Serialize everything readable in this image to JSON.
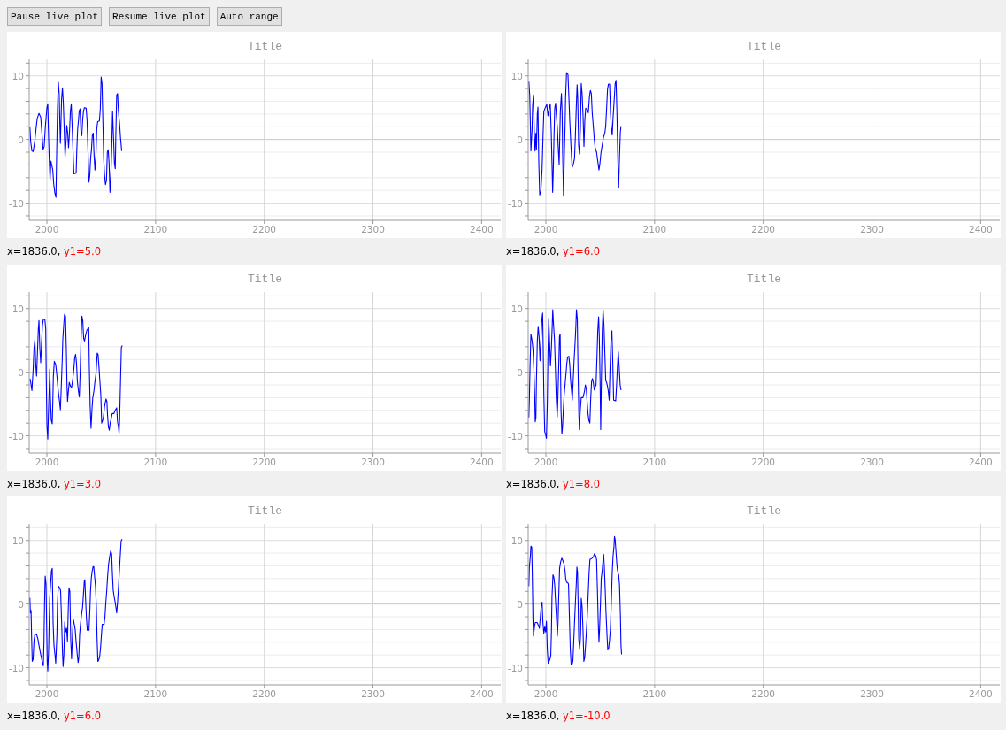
{
  "chart_data": [
    {
      "type": "other",
      "annotations": [
        "Pause live plot",
        "Resume live plot",
        "Auto range"
      ]
    },
    {
      "type": "line",
      "title": "Title",
      "xlim": [
        1983.7,
        2417.6
      ],
      "ylim": [
        -12.7,
        12.6
      ],
      "xticks": [
        2000,
        2100,
        2200,
        2300,
        2400
      ],
      "yticks": [
        {
          "value": -12,
          "label": null
        },
        -10,
        {
          "value": -8,
          "label": null
        },
        {
          "value": -6,
          "label": null
        },
        {
          "value": -4,
          "label": null
        },
        {
          "value": -2,
          "label": null
        },
        0,
        {
          "value": 2,
          "label": null
        },
        {
          "value": 4,
          "label": null
        },
        {
          "value": 6,
          "label": null
        },
        {
          "value": 8,
          "label": null
        },
        10,
        {
          "value": 12,
          "label": null
        }
      ],
      "grid": true,
      "annotations": [
        "x=1836.0,",
        "y1=5.0"
      ],
      "x": [
        1984.3,
        1985.1,
        1986.2,
        1987.3,
        1988.9,
        1990.0,
        1991.1,
        1992.7,
        1994.3,
        1995.4,
        1996.5,
        1997.5,
        1998.6,
        2000.0,
        2000.8,
        2001.3,
        2002.1,
        2002.9,
        2003.7,
        2005.4,
        2006.2,
        2007.3,
        2008.3,
        2008.9,
        2009.7,
        2010.5,
        2011.3,
        2011.8,
        2012.4,
        2012.9,
        2013.5,
        2014.3,
        2015.1,
        2015.9,
        2016.7,
        2017.5,
        2018.3,
        2019.1,
        2019.9,
        2020.8,
        2021.6,
        2022.4,
        2023.2,
        2024.0,
        2024.8,
        2026.9,
        2027.5,
        2028.3,
        2029.1,
        2029.7,
        2030.5,
        2031.3,
        2032.1,
        2032.9,
        2033.7,
        2034.5,
        2036.1,
        2036.9,
        2037.8,
        2038.6,
        2039.4,
        2040.2,
        2041.0,
        2041.8,
        2042.6,
        2043.4,
        2044.2,
        2045.1,
        2045.9,
        2046.7,
        2048.3,
        2049.1,
        2049.9,
        2050.7,
        2051.5,
        2052.3,
        2053.1,
        2053.9,
        2054.8,
        2055.6,
        2056.4,
        2057.2,
        2058.0,
        2058.8,
        2059.6,
        2060.4,
        2061.3,
        2062.1,
        2062.9,
        2063.4,
        2064.2,
        2065.0,
        2065.8,
        2066.9,
        2067.7,
        2068.8
      ],
      "series": [
        {
          "color": "#0000ff",
          "values": [
            2.0,
            -0.4,
            -1.8,
            -1.9,
            -0.2,
            1.7,
            3.3,
            4.1,
            3.5,
            1.0,
            -1.6,
            -1.1,
            2.1,
            5.0,
            5.6,
            1.9,
            -3.0,
            -6.4,
            -3.4,
            -4.8,
            -6.9,
            -8.4,
            -9.1,
            -2.7,
            4.7,
            9.0,
            7.2,
            3.1,
            -0.6,
            2.6,
            6.3,
            8.1,
            5.8,
            1.7,
            -2.7,
            -0.6,
            2.2,
            1.0,
            -1.3,
            1.2,
            4.4,
            5.6,
            2.1,
            -1.8,
            -5.4,
            -5.3,
            -1.6,
            1.7,
            3.1,
            4.5,
            4.8,
            1.3,
            0.6,
            3.1,
            4.5,
            5.0,
            4.9,
            3.1,
            -1.8,
            -6.7,
            -5.7,
            -3.0,
            -1.6,
            0.7,
            1.0,
            -2.5,
            -4.8,
            -2.5,
            1.7,
            2.8,
            2.9,
            4.7,
            9.8,
            8.8,
            2.8,
            -3.2,
            -5.7,
            -7.1,
            -6.4,
            -2.0,
            -1.6,
            -3.7,
            -8.3,
            -5.7,
            -1.6,
            4.4,
            0.3,
            -3.7,
            -4.6,
            0.7,
            7.0,
            7.2,
            4.4,
            2.4,
            0.3,
            -1.8
          ]
        }
      ]
    },
    {
      "type": "line",
      "title": "Title",
      "xlim": [
        1983.7,
        2417.6
      ],
      "ylim": [
        -12.7,
        12.6
      ],
      "xticks": [
        2000,
        2100,
        2200,
        2300,
        2400
      ],
      "yticks": [
        {
          "value": -12,
          "label": null
        },
        -10,
        {
          "value": -8,
          "label": null
        },
        {
          "value": -6,
          "label": null
        },
        {
          "value": -4,
          "label": null
        },
        {
          "value": -2,
          "label": null
        },
        0,
        {
          "value": 2,
          "label": null
        },
        {
          "value": 4,
          "label": null
        },
        {
          "value": 6,
          "label": null
        },
        {
          "value": 8,
          "label": null
        },
        10,
        {
          "value": 12,
          "label": null
        }
      ],
      "grid": true,
      "annotations": [
        "x=1836.0,",
        "y1=6.0"
      ],
      "x": [
        1984.3,
        1985.1,
        1985.7,
        1986.2,
        1987.3,
        1987.8,
        1988.6,
        1989.2,
        1990.0,
        1990.8,
        1991.3,
        1992.1,
        1992.7,
        1993.5,
        1994.3,
        1995.4,
        1996.5,
        1997.3,
        1998.1,
        1999.2,
        2000.8,
        2001.9,
        2002.9,
        2004.0,
        2004.9,
        2005.7,
        2006.2,
        2006.8,
        2007.3,
        2008.1,
        2008.9,
        2009.7,
        2010.5,
        2011.3,
        2012.2,
        2013.3,
        2014.3,
        2014.9,
        2015.4,
        2016.2,
        2017.1,
        2017.6,
        2018.1,
        2019.0,
        2020.3,
        2021.1,
        2021.9,
        2023.0,
        2024.1,
        2025.2,
        2026.3,
        2027.1,
        2027.9,
        2028.7,
        2029.3,
        2030.1,
        2030.9,
        2031.7,
        2032.5,
        2033.3,
        2034.2,
        2035.0,
        2035.8,
        2036.6,
        2038.0,
        2039.0,
        2040.1,
        2040.9,
        2041.8,
        2042.6,
        2043.6,
        2044.5,
        2045.3,
        2046.6,
        2047.7,
        2048.8,
        2049.6,
        2050.7,
        2051.8,
        2052.9,
        2054.2,
        2055.0,
        2055.8,
        2056.7,
        2057.5,
        2058.6,
        2059.4,
        2060.2,
        2061.0,
        2061.8,
        2062.6,
        2063.7,
        2064.5,
        2065.3,
        2066.1,
        2066.9,
        2067.7,
        2068.5,
        2069.1
      ],
      "series": [
        {
          "color": "#0000ff",
          "values": [
            9.1,
            7.0,
            2.4,
            -1.8,
            1.7,
            5.4,
            7.0,
            1.7,
            -1.8,
            1.0,
            -1.6,
            4.0,
            5.1,
            -3.9,
            -8.7,
            -8.1,
            -4.6,
            0.3,
            4.4,
            4.9,
            5.5,
            3.7,
            4.7,
            5.6,
            1.2,
            -4.4,
            -8.3,
            -4.8,
            -0.6,
            4.9,
            5.7,
            3.7,
            1.9,
            -1.1,
            -3.9,
            4.5,
            7.2,
            4.2,
            -2.2,
            -8.9,
            -1.3,
            1.7,
            6.5,
            10.5,
            10.2,
            6.8,
            3.1,
            -0.9,
            -4.4,
            -3.9,
            -3.0,
            0.5,
            4.9,
            8.6,
            6.3,
            -0.9,
            -2.3,
            1.7,
            8.8,
            7.2,
            3.5,
            -1.1,
            3.1,
            4.9,
            4.7,
            4.2,
            6.8,
            7.7,
            7.2,
            4.2,
            2.1,
            0.0,
            -1.3,
            -2.0,
            -3.4,
            -4.8,
            -3.9,
            -2.0,
            -0.9,
            0.3,
            1.0,
            2.1,
            4.7,
            7.9,
            8.7,
            8.7,
            4.2,
            1.7,
            0.7,
            3.5,
            5.6,
            8.8,
            9.3,
            4.4,
            -2.7,
            -7.6,
            -2.7,
            1.2,
            2.1
          ]
        }
      ]
    },
    {
      "type": "line",
      "title": "Title",
      "xlim": [
        1983.7,
        2417.6
      ],
      "ylim": [
        -12.7,
        12.6
      ],
      "xticks": [
        2000,
        2100,
        2200,
        2300,
        2400
      ],
      "yticks": [
        {
          "value": -12,
          "label": null
        },
        -10,
        {
          "value": -8,
          "label": null
        },
        {
          "value": -6,
          "label": null
        },
        {
          "value": -4,
          "label": null
        },
        {
          "value": -2,
          "label": null
        },
        0,
        {
          "value": 2,
          "label": null
        },
        {
          "value": 4,
          "label": null
        },
        {
          "value": 6,
          "label": null
        },
        {
          "value": 8,
          "label": null
        },
        10,
        {
          "value": 12,
          "label": null
        }
      ],
      "grid": true,
      "annotations": [
        "x=1836.0,",
        "y1=3.0"
      ],
      "x": [
        1984.3,
        1985.1,
        1986.2,
        1987.3,
        1988.1,
        1988.9,
        1989.7,
        1990.5,
        1991.3,
        1992.1,
        1992.7,
        1993.5,
        1994.3,
        1995.1,
        1995.9,
        1996.7,
        1998.1,
        1998.9,
        1999.4,
        2000.0,
        2000.8,
        2001.3,
        2002.1,
        2002.6,
        2003.2,
        2004.0,
        2004.9,
        2005.4,
        2005.9,
        2006.8,
        2008.1,
        2009.2,
        2010.0,
        2010.8,
        2011.6,
        2012.4,
        2013.3,
        2014.1,
        2014.6,
        2015.4,
        2016.2,
        2017.1,
        2017.9,
        2018.5,
        2019.0,
        2019.8,
        2020.6,
        2021.6,
        2022.7,
        2023.8,
        2024.8,
        2025.6,
        2026.4,
        2027.2,
        2028.0,
        2028.8,
        2029.8,
        2030.6,
        2031.4,
        2032.2,
        2033.0,
        2033.8,
        2034.6,
        2035.7,
        2036.8,
        2038.5,
        2039.0,
        2039.8,
        2040.6,
        2041.4,
        2042.2,
        2043.3,
        2044.1,
        2045.2,
        2046.3,
        2047.1,
        2047.9,
        2048.7,
        2049.6,
        2050.4,
        2051.2,
        2052.0,
        2053.1,
        2054.4,
        2055.2,
        2055.8,
        2056.6,
        2057.4,
        2058.2,
        2059.0,
        2060.1,
        2061.7,
        2062.8,
        2064.2,
        2065.0,
        2065.8,
        2066.4,
        2066.9,
        2067.7,
        2068.5,
        2069.4
      ],
      "series": [
        {
          "color": "#0000ff",
          "values": [
            -1.0,
            -1.6,
            -2.9,
            0.3,
            3.7,
            5.1,
            1.2,
            -0.6,
            3.1,
            6.8,
            8.1,
            3.7,
            1.5,
            4.7,
            7.4,
            8.3,
            8.3,
            6.8,
            -0.9,
            -8.3,
            -10.5,
            -7.0,
            -2.7,
            0.5,
            -4.0,
            -7.5,
            -8.1,
            -4.9,
            -0.8,
            1.7,
            1.2,
            -0.6,
            -2.2,
            -3.5,
            -4.6,
            -5.9,
            -1.9,
            2.0,
            5.1,
            7.2,
            9.1,
            8.8,
            3.4,
            -2.2,
            -4.6,
            -2.9,
            -1.6,
            -2.2,
            -2.4,
            -1.1,
            0.5,
            2.3,
            2.8,
            1.5,
            -1.4,
            -2.7,
            -3.9,
            0.0,
            5.1,
            8.8,
            8.1,
            5.3,
            4.9,
            5.9,
            6.6,
            7.0,
            1.0,
            -5.4,
            -8.8,
            -6.0,
            -4.0,
            -2.9,
            -1.6,
            -0.2,
            3.0,
            2.8,
            0.8,
            -1.3,
            -3.6,
            -8.0,
            -7.6,
            -7.1,
            -5.3,
            -4.2,
            -4.6,
            -6.8,
            -8.6,
            -9.1,
            -8.0,
            -7.4,
            -6.5,
            -6.5,
            -6.0,
            -5.6,
            -7.8,
            -8.6,
            -9.6,
            -7.4,
            -1.6,
            3.9,
            4.2
          ]
        }
      ]
    },
    {
      "type": "line",
      "title": "Title",
      "xlim": [
        1983.7,
        2417.6
      ],
      "ylim": [
        -12.7,
        12.6
      ],
      "xticks": [
        2000,
        2100,
        2200,
        2300,
        2400
      ],
      "yticks": [
        {
          "value": -12,
          "label": null
        },
        -10,
        {
          "value": -8,
          "label": null
        },
        {
          "value": -6,
          "label": null
        },
        {
          "value": -4,
          "label": null
        },
        {
          "value": -2,
          "label": null
        },
        0,
        {
          "value": 2,
          "label": null
        },
        {
          "value": 4,
          "label": null
        },
        {
          "value": 6,
          "label": null
        },
        {
          "value": 8,
          "label": null
        },
        10,
        {
          "value": 12,
          "label": null
        }
      ],
      "grid": true,
      "annotations": [
        "x=1836.0,",
        "y1=8.0"
      ],
      "x": [
        1984.3,
        1984.8,
        1985.4,
        1986.2,
        1987.3,
        1988.1,
        1988.9,
        1989.7,
        1990.2,
        1990.8,
        1991.3,
        1992.1,
        1992.9,
        1993.7,
        1994.6,
        1995.4,
        1996.2,
        1997.0,
        1997.5,
        1998.1,
        1998.9,
        1999.7,
        2000.5,
        2001.3,
        2001.9,
        2002.6,
        2003.4,
        2004.2,
        2005.0,
        2005.8,
        2006.3,
        2007.1,
        2007.9,
        2008.7,
        2009.5,
        2010.4,
        2010.9,
        2011.7,
        2012.5,
        2013.1,
        2013.9,
        2014.7,
        2015.3,
        2016.0,
        2016.8,
        2017.6,
        2018.4,
        2019.2,
        2020.0,
        2021.1,
        2021.9,
        2022.7,
        2023.5,
        2024.3,
        2025.1,
        2025.9,
        2026.8,
        2027.6,
        2028.1,
        2028.9,
        2029.5,
        2030.3,
        2030.8,
        2031.6,
        2032.5,
        2034.1,
        2035.5,
        2036.3,
        2037.1,
        2037.9,
        2038.7,
        2039.6,
        2040.4,
        2041.2,
        2042.0,
        2042.8,
        2043.6,
        2044.5,
        2045.3,
        2046.1,
        2046.9,
        2047.7,
        2048.5,
        2049.1,
        2049.9,
        2050.4,
        2051.0,
        2051.8,
        2052.6,
        2053.4,
        2054.2,
        2055.0,
        2055.8,
        2056.6,
        2057.4,
        2058.2,
        2059.0,
        2059.9,
        2060.7,
        2061.5,
        2062.3,
        2064.2,
        2065.0,
        2065.8,
        2066.6,
        2067.5,
        2068.3,
        2069.1
      ],
      "series": [
        {
          "color": "#0000ff",
          "values": [
            -7.1,
            -4.4,
            0.8,
            6.0,
            4.9,
            3.6,
            0.6,
            -3.7,
            -7.8,
            -7.2,
            -1.3,
            4.9,
            7.2,
            5.6,
            1.8,
            4.9,
            8.1,
            9.3,
            4.2,
            -3.4,
            -9.3,
            -9.8,
            -10.4,
            -4.8,
            2.9,
            8.5,
            4.7,
            1.0,
            3.6,
            7.2,
            9.8,
            7.2,
            5.1,
            0.8,
            -3.9,
            -7.0,
            -4.8,
            0.3,
            5.6,
            6.0,
            -6.0,
            -9.7,
            -8.6,
            -6.0,
            -3.6,
            -2.0,
            -0.4,
            1.3,
            2.4,
            2.5,
            1.2,
            -1.3,
            -2.8,
            -4.4,
            -1.2,
            1.8,
            4.5,
            7.4,
            9.8,
            8.3,
            1.0,
            -6.6,
            -9.0,
            -6.0,
            -4.0,
            -4.0,
            -3.0,
            -2.0,
            -2.6,
            -4.6,
            -6.5,
            -7.6,
            -8.0,
            -4.2,
            -1.5,
            -1.0,
            -1.6,
            -2.8,
            -2.3,
            -2.0,
            2.0,
            6.5,
            8.7,
            5.6,
            -2.0,
            -9.0,
            -1.6,
            6.3,
            9.8,
            7.4,
            3.1,
            -1.3,
            -1.6,
            -2.2,
            -3.0,
            -4.4,
            0.7,
            5.1,
            6.5,
            1.6,
            -4.4,
            -4.5,
            -2.0,
            0.9,
            3.2,
            0.5,
            -2.0,
            -2.8
          ]
        }
      ]
    },
    {
      "type": "line",
      "title": "Title",
      "xlim": [
        1983.7,
        2417.6
      ],
      "ylim": [
        -12.7,
        12.6
      ],
      "xticks": [
        2000,
        2100,
        2200,
        2300,
        2400
      ],
      "yticks": [
        {
          "value": -12,
          "label": null
        },
        -10,
        {
          "value": -8,
          "label": null
        },
        {
          "value": -6,
          "label": null
        },
        {
          "value": -4,
          "label": null
        },
        {
          "value": -2,
          "label": null
        },
        0,
        {
          "value": 2,
          "label": null
        },
        {
          "value": 4,
          "label": null
        },
        {
          "value": 6,
          "label": null
        },
        {
          "value": 8,
          "label": null
        },
        10,
        {
          "value": 12,
          "label": null
        }
      ],
      "grid": true,
      "annotations": [
        "x=1836.0,",
        "y1=6.0"
      ],
      "x": [
        1984.3,
        1984.8,
        1985.4,
        1985.9,
        1986.5,
        1987.3,
        1988.1,
        1988.9,
        1990.5,
        1991.6,
        1992.7,
        1993.8,
        1994.9,
        1996.0,
        1996.7,
        1997.3,
        1997.8,
        1998.4,
        1999.2,
        1999.7,
        2000.3,
        2000.8,
        2001.6,
        2002.1,
        2002.6,
        2003.4,
        2004.2,
        2004.9,
        2005.7,
        2006.5,
        2007.3,
        2008.1,
        2009.2,
        2009.7,
        2010.5,
        2011.6,
        2012.6,
        2013.5,
        2014.3,
        2014.9,
        2015.6,
        2016.4,
        2017.2,
        2018.1,
        2018.9,
        2019.7,
        2020.3,
        2021.1,
        2021.9,
        2022.7,
        2023.6,
        2024.3,
        2025.2,
        2026.0,
        2026.8,
        2027.9,
        2028.7,
        2029.3,
        2030.1,
        2030.9,
        2031.7,
        2032.8,
        2033.6,
        2034.4,
        2034.9,
        2035.5,
        2036.3,
        2037.1,
        2038.7,
        2039.5,
        2040.1,
        2040.9,
        2041.7,
        2042.5,
        2043.1,
        2043.9,
        2044.7,
        2045.5,
        2046.1,
        2046.9,
        2047.7,
        2048.5,
        2049.3,
        2050.1,
        2050.9,
        2052.6,
        2053.4,
        2054.2,
        2055.0,
        2055.8,
        2056.7,
        2057.5,
        2058.3,
        2058.8,
        2059.6,
        2060.2,
        2061.0,
        2061.8,
        2062.6,
        2063.4,
        2064.2,
        2065.1,
        2065.9,
        2066.7,
        2067.5,
        2068.3,
        2069.1
      ],
      "series": [
        {
          "color": "#0000ff",
          "values": [
            1.0,
            -1.4,
            -1.0,
            -5.1,
            -9.0,
            -8.7,
            -5.8,
            -4.8,
            -4.8,
            -5.4,
            -6.5,
            -7.5,
            -8.4,
            -9.3,
            -9.7,
            -5.9,
            0.0,
            4.4,
            3.1,
            -2.9,
            -9.0,
            -10.5,
            -7.1,
            -2.8,
            1.0,
            3.2,
            5.2,
            5.6,
            -3.0,
            -6.5,
            -7.8,
            -9.3,
            -4.8,
            0.1,
            2.8,
            2.6,
            2.1,
            -2.6,
            -7.4,
            -9.8,
            -8.0,
            -2.8,
            -4.4,
            -3.8,
            -5.8,
            -0.5,
            2.5,
            2.0,
            -5.6,
            -8.6,
            -4.5,
            -2.4,
            -3.2,
            -4.0,
            -5.8,
            -7.9,
            -9.2,
            -8.5,
            -4.8,
            -3.2,
            -1.9,
            -0.5,
            1.5,
            3.6,
            3.8,
            1.1,
            -2.0,
            -4.1,
            -4.1,
            -1.1,
            2.0,
            4.2,
            5.2,
            5.9,
            5.9,
            4.3,
            2.8,
            -0.4,
            -5.1,
            -9.0,
            -8.8,
            -8.3,
            -7.0,
            -5.0,
            -3.2,
            -3.2,
            -2.0,
            0.2,
            2.0,
            4.2,
            6.2,
            7.2,
            8.0,
            8.4,
            7.8,
            5.0,
            2.2,
            1.2,
            0.5,
            -0.4,
            -1.4,
            0.5,
            2.8,
            5.2,
            7.6,
            9.9,
            10.2
          ]
        }
      ]
    },
    {
      "type": "line",
      "title": "Title",
      "xlim": [
        1983.7,
        2417.6
      ],
      "ylim": [
        -12.7,
        12.6
      ],
      "xticks": [
        2000,
        2100,
        2200,
        2300,
        2400
      ],
      "yticks": [
        {
          "value": -12,
          "label": null
        },
        -10,
        {
          "value": -8,
          "label": null
        },
        {
          "value": -6,
          "label": null
        },
        {
          "value": -4,
          "label": null
        },
        {
          "value": -2,
          "label": null
        },
        0,
        {
          "value": 2,
          "label": null
        },
        {
          "value": 4,
          "label": null
        },
        {
          "value": 6,
          "label": null
        },
        {
          "value": 8,
          "label": null
        },
        10,
        {
          "value": 12,
          "label": null
        }
      ],
      "grid": true,
      "annotations": [
        "x=1836.0,",
        "y1=-10.0"
      ],
      "x": [
        1984.3,
        1984.8,
        1985.7,
        1986.2,
        1987.0,
        1987.6,
        1988.1,
        1988.6,
        1989.4,
        1990.2,
        1991.9,
        1993.0,
        1994.0,
        1994.9,
        1995.7,
        1996.5,
        1997.3,
        1998.1,
        1998.9,
        1999.7,
        2000.5,
        2001.3,
        2002.1,
        2002.9,
        2003.7,
        2004.5,
        2005.1,
        2005.6,
        2006.5,
        2007.3,
        2008.1,
        2008.9,
        2010.0,
        2010.5,
        2011.1,
        2011.8,
        2012.6,
        2013.5,
        2014.6,
        2015.7,
        2016.7,
        2017.6,
        2018.3,
        2019.1,
        2020.0,
        2020.8,
        2021.6,
        2022.4,
        2023.2,
        2024.0,
        2024.8,
        2025.6,
        2026.4,
        2027.2,
        2028.0,
        2028.5,
        2029.1,
        2029.7,
        2030.2,
        2031.1,
        2031.9,
        2032.5,
        2033.3,
        2034.1,
        2034.9,
        2035.7,
        2036.5,
        2037.3,
        2038.1,
        2038.9,
        2039.7,
        2040.5,
        2042.4,
        2043.6,
        2044.7,
        2045.8,
        2046.6,
        2047.4,
        2048.2,
        2048.8,
        2049.3,
        2050.1,
        2050.9,
        2051.8,
        2052.6,
        2053.1,
        2053.7,
        2054.5,
        2055.3,
        2056.1,
        2056.9,
        2057.7,
        2058.5,
        2059.3,
        2060.2,
        2061.0,
        2061.8,
        2062.6,
        2063.1,
        2063.7,
        2064.5,
        2065.3,
        2066.1,
        2066.9,
        2067.7,
        2068.5,
        2069.1,
        2069.6
      ],
      "series": [
        {
          "color": "#0000ff",
          "values": [
            2.8,
            5.8,
            7.5,
            9.1,
            8.9,
            3.4,
            -2.4,
            -5.0,
            -3.7,
            -2.9,
            -2.9,
            -3.3,
            -3.8,
            -2.0,
            -0.3,
            0.3,
            -3.0,
            -4.6,
            -3.6,
            -4.4,
            -2.7,
            -7.2,
            -9.3,
            -9.0,
            -8.7,
            -8.1,
            -4.2,
            1.1,
            4.6,
            4.2,
            3.0,
            0.3,
            -3.0,
            -5.0,
            -3.2,
            1.1,
            5.6,
            6.6,
            7.2,
            6.8,
            6.3,
            5.2,
            3.9,
            3.4,
            3.4,
            3.1,
            -2.0,
            -7.0,
            -9.5,
            -9.5,
            -9.0,
            -5.9,
            -2.6,
            0.5,
            3.4,
            5.8,
            4.9,
            -0.5,
            -5.5,
            -7.1,
            -4.8,
            0.9,
            -0.4,
            -4.0,
            -9.0,
            -8.4,
            -6.4,
            -4.0,
            -1.6,
            1.6,
            4.8,
            7.0,
            7.2,
            7.4,
            7.9,
            7.6,
            7.0,
            2.1,
            -3.2,
            -6.0,
            -4.2,
            -0.3,
            4.0,
            5.3,
            7.0,
            7.8,
            6.0,
            2.4,
            -1.4,
            -4.5,
            -7.2,
            -7.0,
            -5.7,
            -4.0,
            0.5,
            5.0,
            7.6,
            9.0,
            10.6,
            10.1,
            8.1,
            6.1,
            5.0,
            4.6,
            3.0,
            -1.6,
            -6.6,
            -7.9
          ]
        }
      ]
    }
  ]
}
